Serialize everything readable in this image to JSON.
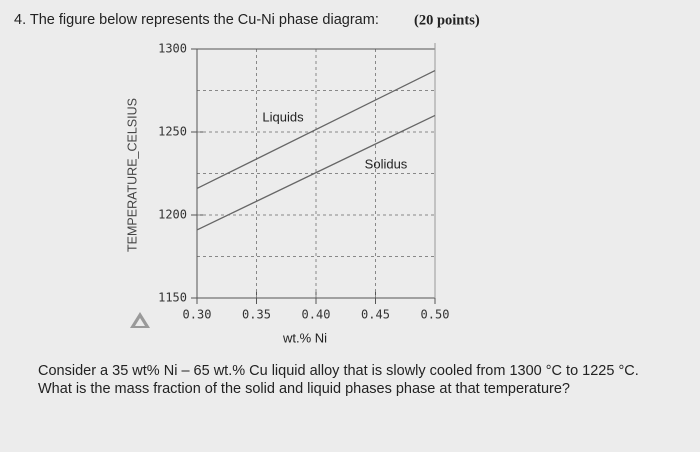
{
  "question": {
    "heading": "4. The figure below represents the Cu-Ni phase diagram:",
    "points": "(20 points)",
    "prompt": [
      "Consider a 35 wt% Ni – 65 wt.% Cu liquid alloy that is slowly cooled from 1300 °C to 1225 °C.",
      "What is the mass fraction of the solid and liquid phases phase at that temperature?"
    ]
  },
  "chart_data": {
    "type": "line",
    "x_label": "wt.% Ni",
    "y_label": "TEMPERATURE_CELSIUS",
    "x": [
      0.3,
      0.5
    ],
    "series": [
      {
        "name": "Liquids",
        "color": "#666666",
        "values": [
          1216,
          1287
        ]
      },
      {
        "name": "Solidus",
        "color": "#666666",
        "values": [
          1191,
          1260
        ]
      }
    ],
    "xlim": [
      0.3,
      0.5
    ],
    "xticks": [
      {
        "value": 0.3,
        "label": "0.30"
      },
      {
        "value": 0.35,
        "label": "0.35"
      },
      {
        "value": 0.4,
        "label": "0.40"
      },
      {
        "value": 0.45,
        "label": "0.45"
      },
      {
        "value": 0.5,
        "label": "0.50"
      }
    ],
    "ylim": [
      1150,
      1300
    ],
    "yticks": [
      1150,
      1200,
      1250,
      1300
    ],
    "y_minor_grid": [
      1175,
      1225,
      1275
    ],
    "grid": true
  }
}
